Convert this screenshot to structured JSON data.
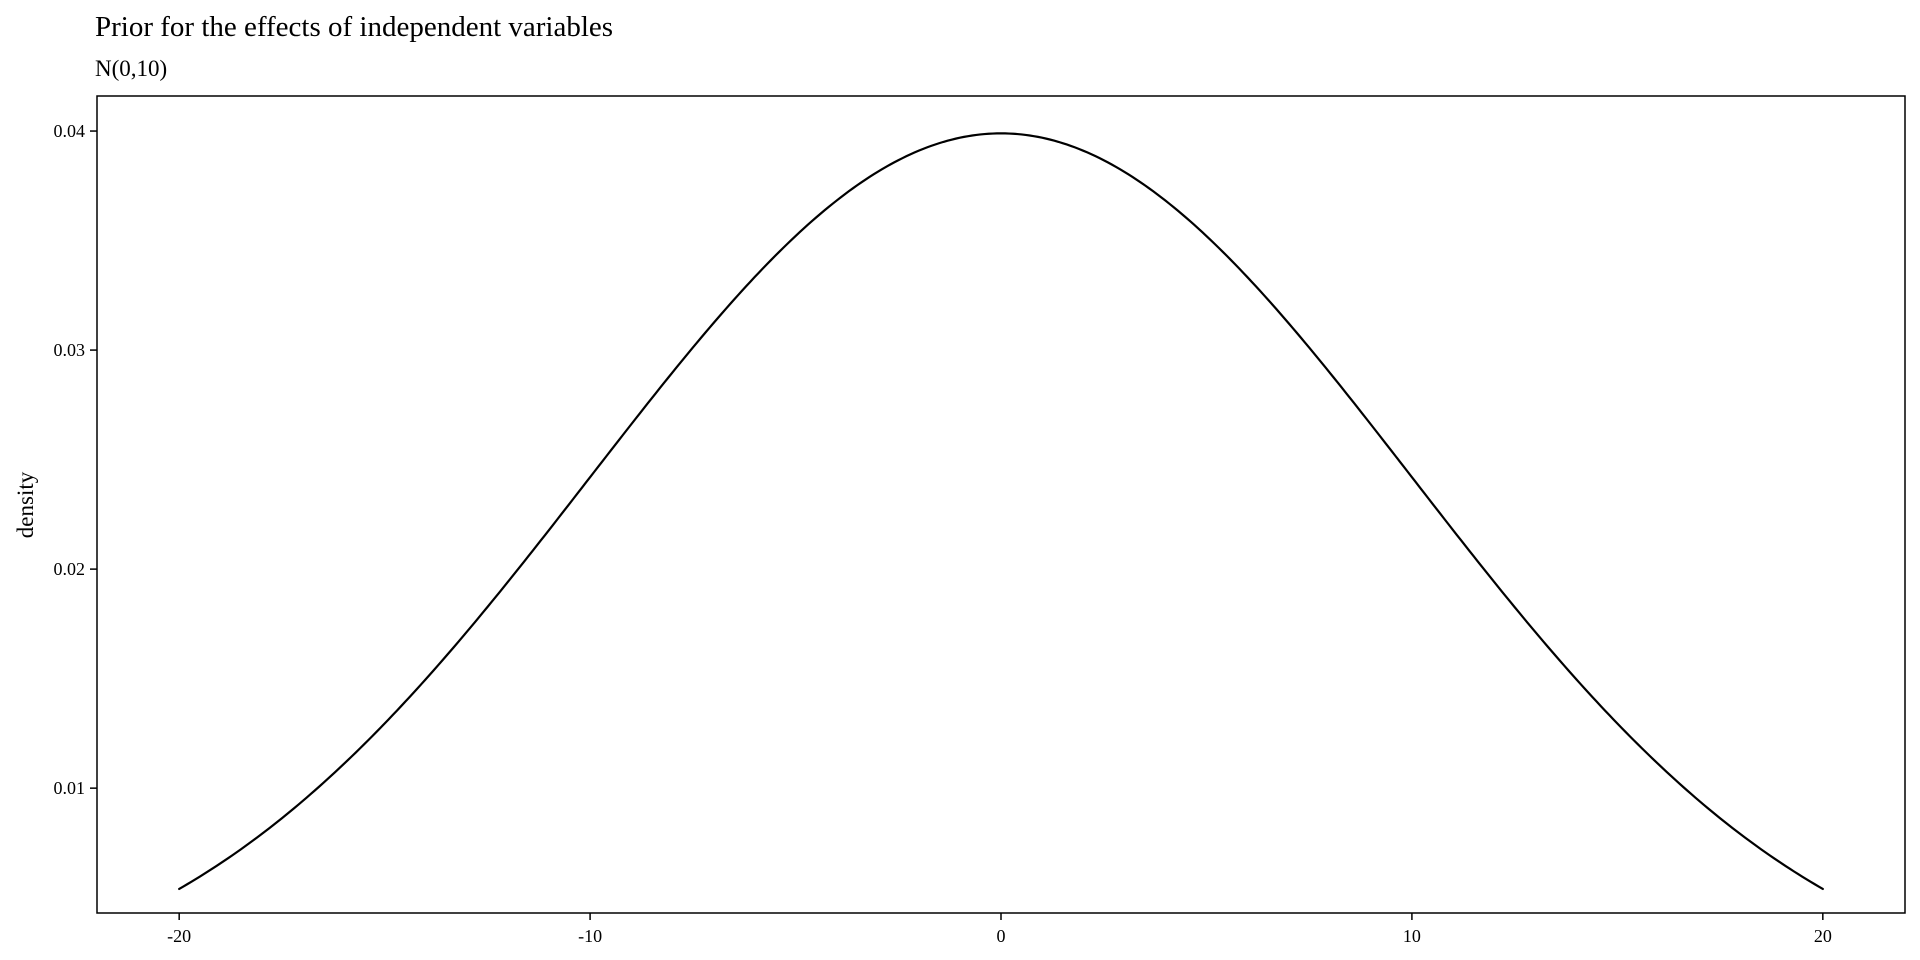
{
  "chart_data": {
    "type": "line",
    "title": "Prior for the effects of independent variables",
    "subtitle": "N(0,10)",
    "xlabel": "",
    "ylabel": "density",
    "xlim": [
      -22,
      22
    ],
    "ylim": [
      0.0043,
      0.0416
    ],
    "x_ticks": [
      -20,
      -10,
      0,
      10,
      20
    ],
    "x_tick_labels": [
      "-20",
      "-10",
      "0",
      "10",
      "20"
    ],
    "y_ticks": [
      0.01,
      0.02,
      0.03,
      0.04
    ],
    "y_tick_labels": [
      "0.01",
      "0.02",
      "0.03",
      "0.04"
    ],
    "grid": false,
    "series": [
      {
        "line_color": "#000000",
        "distribution": "normal",
        "mean": 0,
        "sd": 10,
        "x_range": [
          -20,
          20
        ],
        "x": [
          -20,
          -18,
          -16,
          -14,
          -12,
          -10,
          -8,
          -6,
          -4,
          -2,
          0,
          2,
          4,
          6,
          8,
          10,
          12,
          14,
          16,
          18,
          20
        ],
        "y": [
          0.0054,
          0.0079,
          0.0111,
          0.015,
          0.0194,
          0.0242,
          0.029,
          0.0333,
          0.0368,
          0.0391,
          0.0399,
          0.0391,
          0.0368,
          0.0333,
          0.029,
          0.0242,
          0.0194,
          0.015,
          0.0111,
          0.0079,
          0.0054
        ]
      }
    ]
  }
}
